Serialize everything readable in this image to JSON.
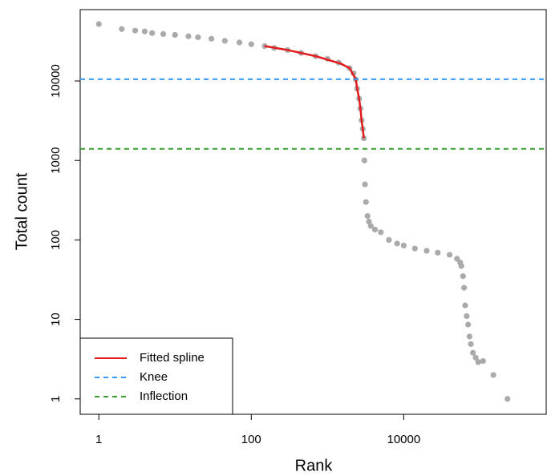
{
  "chart_data": {
    "type": "scatter",
    "x_label": "Rank",
    "y_label": "Total count",
    "log_x": true,
    "log_y": true,
    "xlim": [
      0.57,
      740000
    ],
    "ylim": [
      0.64,
      79000
    ],
    "xticks": [
      1,
      100,
      10000
    ],
    "yticks": [
      1,
      10,
      100,
      1000,
      10000
    ],
    "points": {
      "color": "#aaaaaa",
      "x": [
        1,
        2,
        3,
        4,
        5,
        7,
        10,
        15,
        20,
        30,
        45,
        70,
        100,
        150,
        200,
        300,
        450,
        700,
        1000,
        1400,
        1950,
        2200,
        2350,
        2450,
        2600,
        2700,
        2800,
        2900,
        3000,
        3050,
        3100,
        3200,
        3350,
        3500,
        3700,
        4200,
        5000,
        6400,
        8200,
        10000,
        14000,
        20000,
        28000,
        40000,
        50000,
        55000,
        57000,
        60000,
        62000,
        64000,
        67000,
        70000,
        73000,
        76000,
        81000,
        88000,
        95000,
        110000,
        150000,
        230000
      ],
      "y": [
        52000,
        45000,
        43000,
        42000,
        40000,
        39000,
        38000,
        36500,
        35500,
        34000,
        32000,
        30500,
        29000,
        27500,
        26000,
        24500,
        22500,
        20500,
        19000,
        17000,
        14500,
        12500,
        10500,
        8000,
        6000,
        4500,
        3200,
        2500,
        1900,
        1000,
        500,
        300,
        200,
        170,
        150,
        135,
        125,
        100,
        90,
        85,
        78,
        73,
        69,
        65,
        58,
        52,
        47,
        35,
        25,
        15,
        11,
        8.6,
        6.1,
        4.9,
        3.8,
        3.3,
        2.9,
        3,
        2,
        1
      ]
    },
    "spline": {
      "name": "Fitted spline",
      "color": "#e41a1c",
      "x": [
        150,
        300,
        700,
        1500,
        1950,
        2350,
        2450,
        2600,
        2700,
        2800,
        2900,
        3000
      ],
      "y": [
        27500,
        24500,
        20500,
        16500,
        14500,
        10500,
        8000,
        6000,
        4500,
        3200,
        2500,
        1900
      ]
    },
    "hlines": [
      {
        "name": "Knee",
        "value": 10500,
        "color": "#3399ff"
      },
      {
        "name": "Inflection",
        "value": 1400,
        "color": "#33a02c"
      }
    ]
  }
}
